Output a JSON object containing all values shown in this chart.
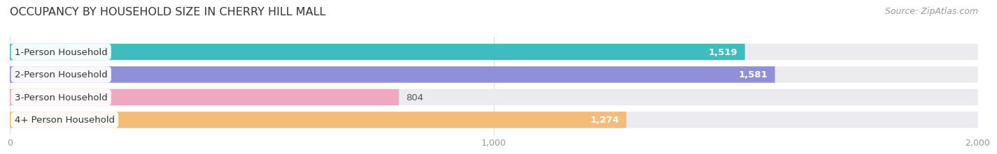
{
  "title": "OCCUPANCY BY HOUSEHOLD SIZE IN CHERRY HILL MALL",
  "source": "Source: ZipAtlas.com",
  "categories": [
    "1-Person Household",
    "2-Person Household",
    "3-Person Household",
    "4+ Person Household"
  ],
  "values": [
    1519,
    1581,
    804,
    1274
  ],
  "bar_colors": [
    "#3dbdbd",
    "#9090d8",
    "#f0a8c0",
    "#f5bc78"
  ],
  "bar_bg_color": "#ebebf0",
  "xlim": [
    -120,
    2000
  ],
  "xlim_display": [
    0,
    2000
  ],
  "xticks": [
    0,
    1000,
    2000
  ],
  "value_labels": [
    "1,519",
    "1,581",
    "804",
    "1,274"
  ],
  "value_label_colors": [
    "white",
    "white",
    "#555555",
    "white"
  ],
  "title_fontsize": 11.5,
  "label_fontsize": 9.5,
  "tick_fontsize": 9,
  "source_fontsize": 9,
  "background_color": "#ffffff"
}
